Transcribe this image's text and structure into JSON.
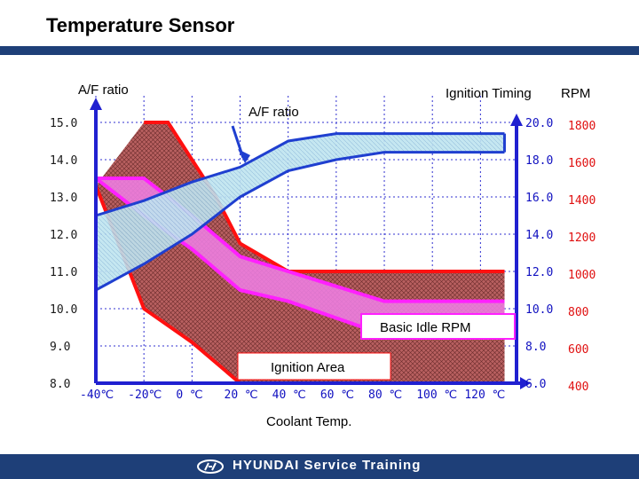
{
  "header": {
    "title": "Temperature Sensor"
  },
  "footer": {
    "brand": "HYUNDAI Service Training"
  },
  "chart_data": {
    "type": "area",
    "title": "Temperature Sensor",
    "xlabel": "Coolant Temp.",
    "left_axis_label": "A/F ratio",
    "right_axis_label_timing": "Ignition Timing",
    "right_axis_label_rpm": "RPM",
    "x_ticks": [
      "-40℃",
      "-20℃",
      "0 ℃",
      "20 ℃",
      "40 ℃",
      "60 ℃",
      "80 ℃",
      "100 ℃",
      "120 ℃"
    ],
    "x_tick_values": [
      -40,
      -20,
      0,
      20,
      40,
      60,
      80,
      100,
      120
    ],
    "xlim": [
      -40,
      135
    ],
    "left_ticks": [
      "15.0",
      "14.0",
      "13.0",
      "12.0",
      "11.0",
      "10.0",
      "9.0",
      "8.0"
    ],
    "left_tick_values": [
      15,
      14,
      13,
      12,
      11,
      10,
      9,
      8
    ],
    "ylim_af": [
      8,
      15
    ],
    "timing_ticks": [
      "20.0",
      "18.0",
      "16.0",
      "14.0",
      "12.0",
      "10.0",
      "8.0",
      "6.0"
    ],
    "rpm_ticks": [
      "1800",
      "1600",
      "1400",
      "1200",
      "1000",
      "800",
      "600",
      "400"
    ],
    "annotations": {
      "af_curve": "A/F ratio",
      "idle_rpm": "Basic Idle RPM",
      "ignition": "Ignition Area"
    },
    "colors": {
      "af_band": "#bfe4f0",
      "af_line": "#1f3fd0",
      "ignition_fill": "#b86060",
      "ignition_edge": "#ff1010",
      "idle_band": "#f080e8",
      "idle_edge": "#ff20ff",
      "axis": "#2020d0",
      "grid": "#3030d0"
    },
    "series": [
      {
        "name": "A/F ratio",
        "axis": "A/F ratio",
        "upper": {
          "x": [
            -40,
            -20,
            0,
            20,
            40,
            60,
            80,
            100,
            130
          ],
          "y": [
            12.5,
            12.9,
            13.4,
            13.8,
            14.5,
            14.7,
            14.7,
            14.7,
            14.7
          ]
        },
        "lower": {
          "x": [
            -40,
            -20,
            0,
            20,
            40,
            60,
            80,
            100,
            130
          ],
          "y": [
            10.5,
            11.2,
            12.0,
            13.0,
            13.7,
            14.0,
            14.2,
            14.2,
            14.2
          ]
        }
      },
      {
        "name": "Basic Idle RPM",
        "axis": "RPM",
        "upper": {
          "x": [
            -40,
            -20,
            0,
            20,
            40,
            80,
            130
          ],
          "y": [
            1500,
            1500,
            1300,
            1080,
            1000,
            840,
            840
          ]
        },
        "lower": {
          "x": [
            -40,
            -20,
            0,
            20,
            40,
            80,
            130
          ],
          "y": [
            1500,
            1300,
            1120,
            900,
            840,
            660,
            660
          ]
        }
      },
      {
        "name": "Ignition Area",
        "axis": "Ignition Timing",
        "upper": {
          "x": [
            -20,
            -10,
            0,
            10,
            20,
            40,
            130
          ],
          "y": [
            20.0,
            20.0,
            18.0,
            16.0,
            13.5,
            12.0,
            12.0
          ]
        },
        "lower": {
          "x": [
            -40,
            -20,
            0,
            20,
            40,
            80,
            130
          ],
          "y": [
            16.6,
            10.0,
            8.2,
            6.0,
            6.0,
            6.0,
            6.0
          ]
        }
      }
    ]
  }
}
